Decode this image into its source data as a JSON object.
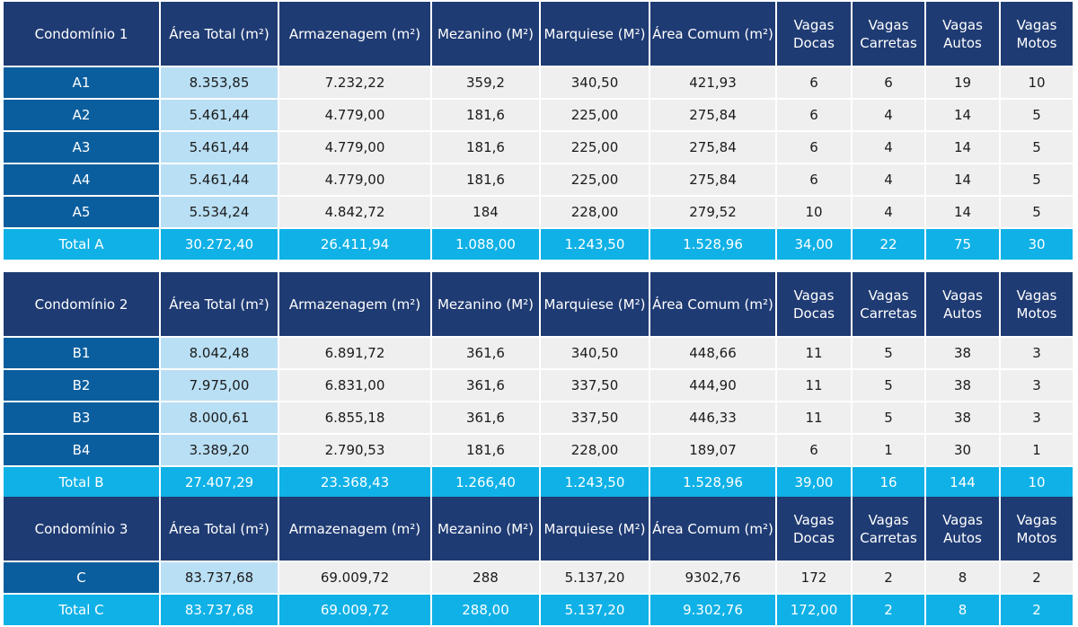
{
  "headers": {
    "area_total": "Área Total (m²)",
    "armazenagem": "Armazenagem (m²)",
    "mezanino": "Mezanino (M²)",
    "marquiese": "Marquiese (M²)",
    "area_comum": "Área Comum (m²)",
    "vagas_docas": "Vagas Docas",
    "vagas_carretas": "Vagas Carretas",
    "vagas_autos": "Vagas Autos",
    "vagas_motos": "Vagas Motos"
  },
  "blocks": [
    {
      "title": "Condomínio 1",
      "rows": [
        [
          "A1",
          "8.353,85",
          "7.232,22",
          "359,2",
          "340,50",
          "421,93",
          "6",
          "6",
          "19",
          "10"
        ],
        [
          "A2",
          "5.461,44",
          "4.779,00",
          "181,6",
          "225,00",
          "275,84",
          "6",
          "4",
          "14",
          "5"
        ],
        [
          "A3",
          "5.461,44",
          "4.779,00",
          "181,6",
          "225,00",
          "275,84",
          "6",
          "4",
          "14",
          "5"
        ],
        [
          "A4",
          "5.461,44",
          "4.779,00",
          "181,6",
          "225,00",
          "275,84",
          "6",
          "4",
          "14",
          "5"
        ],
        [
          "A5",
          "5.534,24",
          "4.842,72",
          "184",
          "228,00",
          "279,52",
          "10",
          "4",
          "14",
          "5"
        ]
      ],
      "total": [
        "Total A",
        "30.272,40",
        "26.411,94",
        "1.088,00",
        "1.243,50",
        "1.528,96",
        "34,00",
        "22",
        "75",
        "30"
      ]
    },
    {
      "title": "Condomínio 2",
      "rows": [
        [
          "B1",
          "8.042,48",
          "6.891,72",
          "361,6",
          "340,50",
          "448,66",
          "11",
          "5",
          "38",
          "3"
        ],
        [
          "B2",
          "7.975,00",
          "6.831,00",
          "361,6",
          "337,50",
          "444,90",
          "11",
          "5",
          "38",
          "3"
        ],
        [
          "B3",
          "8.000,61",
          "6.855,18",
          "361,6",
          "337,50",
          "446,33",
          "11",
          "5",
          "38",
          "3"
        ],
        [
          "B4",
          "3.389,20",
          "2.790,53",
          "181,6",
          "228,00",
          "189,07",
          "6",
          "1",
          "30",
          "1"
        ]
      ],
      "total": [
        "Total B",
        "27.407,29",
        "23.368,43",
        "1.266,40",
        "1.243,50",
        "1.528,96",
        "39,00",
        "16",
        "144",
        "10"
      ]
    },
    {
      "title": "Condomínio 3",
      "rows": [
        [
          "C",
          "83.737,68",
          "69.009,72",
          "288",
          "5.137,20",
          "9302,76",
          "172",
          "2",
          "8",
          "2"
        ]
      ],
      "total": [
        "Total C",
        "83.737,68",
        "69.009,72",
        "288,00",
        "5.137,20",
        "9.302,76",
        "172,00",
        "2",
        "8",
        "2"
      ]
    }
  ]
}
